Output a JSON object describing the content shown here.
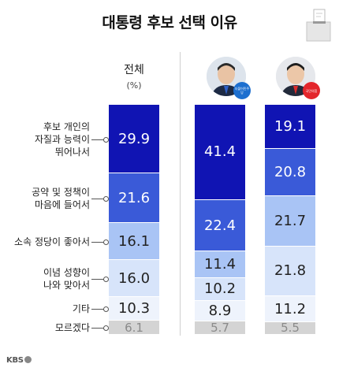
{
  "chart_data": {
    "type": "bar",
    "subtype": "100% stacked",
    "title": "대통령 후보 선택 이유",
    "categories": [
      "후보 개인의 자질과 능력이 뛰어나서",
      "공약 및 정책이 마음에 들어서",
      "소속 정당이 좋아서",
      "이념 성향이 나와 맞아서",
      "기타",
      "모르겠다"
    ],
    "category_lines": [
      [
        "후보 개인의",
        "자질과 능력이",
        "뛰어나서"
      ],
      [
        "공약 및 정책이",
        "마음에 들어서"
      ],
      [
        "소속 정당이 좋아서"
      ],
      [
        "이념 성향이",
        "나와 맞아서"
      ],
      [
        "기타"
      ],
      [
        "모르겠다"
      ]
    ],
    "columns": [
      {
        "name": "전체",
        "unit": "(%)",
        "values": [
          29.9,
          21.6,
          16.1,
          16.0,
          10.3,
          6.1
        ]
      },
      {
        "name": "",
        "badge": "더불어민주당",
        "values": [
          41.4,
          22.4,
          11.4,
          10.2,
          8.9,
          5.7
        ]
      },
      {
        "name": "",
        "badge": "국민의힘",
        "values": [
          19.1,
          20.8,
          21.7,
          21.8,
          11.2,
          5.5
        ]
      }
    ],
    "colors": [
      "#1014b3",
      "#3a5ad8",
      "#a9c4f5",
      "#d7e4fa",
      "#eef3fc",
      "#d4d4d4"
    ],
    "text_colors": [
      "#ffffff",
      "#ffffff",
      "#222222",
      "#222222",
      "#222222",
      "#8a8a8a"
    ],
    "ylim": [
      0,
      100
    ],
    "legend": "left"
  },
  "footer": {
    "brand": "KBS"
  }
}
